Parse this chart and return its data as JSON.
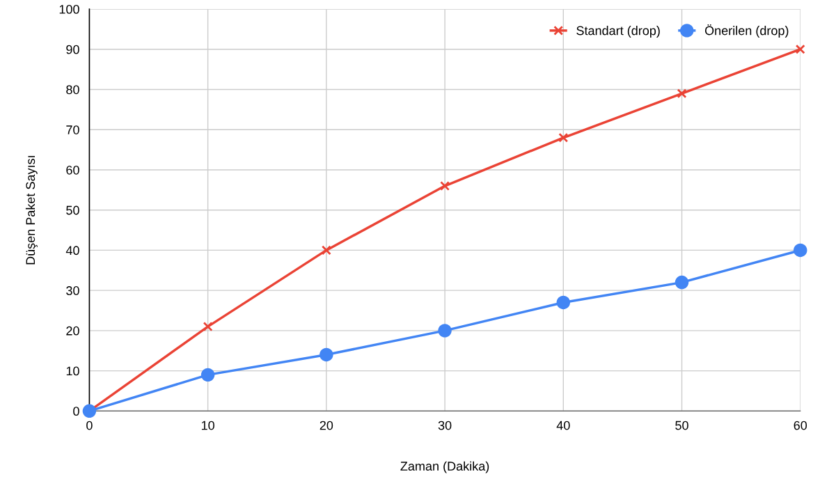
{
  "chart_data": {
    "type": "line",
    "xlabel": "Zaman (Dakika)",
    "ylabel": "Düşen Paket Sayısı",
    "x": [
      0,
      10,
      20,
      30,
      40,
      50,
      60
    ],
    "series": [
      {
        "name": "Standart (drop)",
        "color": "#ea4335",
        "marker": "cross",
        "values": [
          0,
          21,
          40,
          56,
          68,
          79,
          90
        ]
      },
      {
        "name": "Önerilen (drop)",
        "color": "#4285f4",
        "marker": "circle",
        "values": [
          0,
          9,
          14,
          20,
          27,
          32,
          40
        ]
      }
    ],
    "xlim": [
      0,
      60
    ],
    "xticks": [
      0,
      10,
      20,
      30,
      40,
      50,
      60
    ],
    "ylim": [
      0,
      100
    ],
    "yticks": [
      0,
      10,
      20,
      30,
      40,
      50,
      60,
      70,
      80,
      90,
      100
    ],
    "grid": true,
    "legend": "top right",
    "line_style": "solid"
  }
}
